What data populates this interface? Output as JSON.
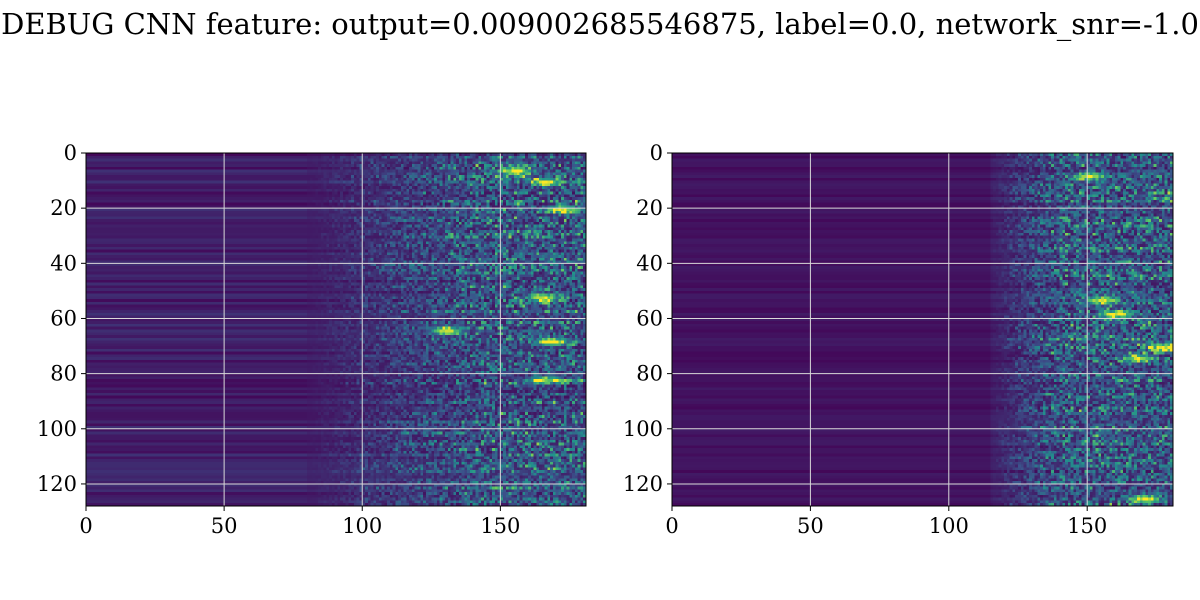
{
  "figure": {
    "title": "DEBUG CNN feature: output=0.009002685546875, label=0.0, network_snr=-1.0"
  },
  "colors": {
    "grid": "#d9d9d9",
    "axes": "#000000",
    "colormap": "viridis",
    "colormap_stops": [
      "#440154",
      "#3b528b",
      "#21918c",
      "#5ec962",
      "#fde725"
    ]
  },
  "chart_data": [
    {
      "type": "heatmap",
      "title": "",
      "xlabel": "",
      "ylabel": "",
      "xlim": [
        0,
        181
      ],
      "ylim": [
        128,
        0
      ],
      "xticks": [
        0,
        50,
        100,
        150
      ],
      "yticks": [
        0,
        20,
        40,
        60,
        80,
        100,
        120
      ],
      "grid": true,
      "colormap": "viridis",
      "description_values": {
        "low_region_x": [
          0,
          80
        ],
        "transition_x": [
          80,
          145
        ],
        "high_activity_x": [
          145,
          181
        ],
        "bright_spots": [
          [
            168,
            68
          ],
          [
            165,
            82
          ],
          [
            166,
            10
          ],
          [
            155,
            6
          ],
          [
            165,
            52
          ],
          [
            172,
            20
          ],
          [
            130,
            64
          ]
        ]
      }
    },
    {
      "type": "heatmap",
      "title": "",
      "xlabel": "",
      "ylabel": "",
      "xlim": [
        0,
        181
      ],
      "ylim": [
        128,
        0
      ],
      "xticks": [
        0,
        50,
        100,
        150
      ],
      "yticks": [
        0,
        20,
        40,
        60,
        80,
        100,
        120
      ],
      "grid": true,
      "colormap": "viridis",
      "description_values": {
        "low_region_x": [
          0,
          115
        ],
        "transition_x": [
          115,
          140
        ],
        "high_activity_x": [
          140,
          181
        ],
        "bright_spots": [
          [
            155,
            53
          ],
          [
            178,
            70
          ],
          [
            160,
            58
          ],
          [
            168,
            74
          ],
          [
            150,
            8
          ],
          [
            170,
            125
          ]
        ]
      }
    }
  ]
}
